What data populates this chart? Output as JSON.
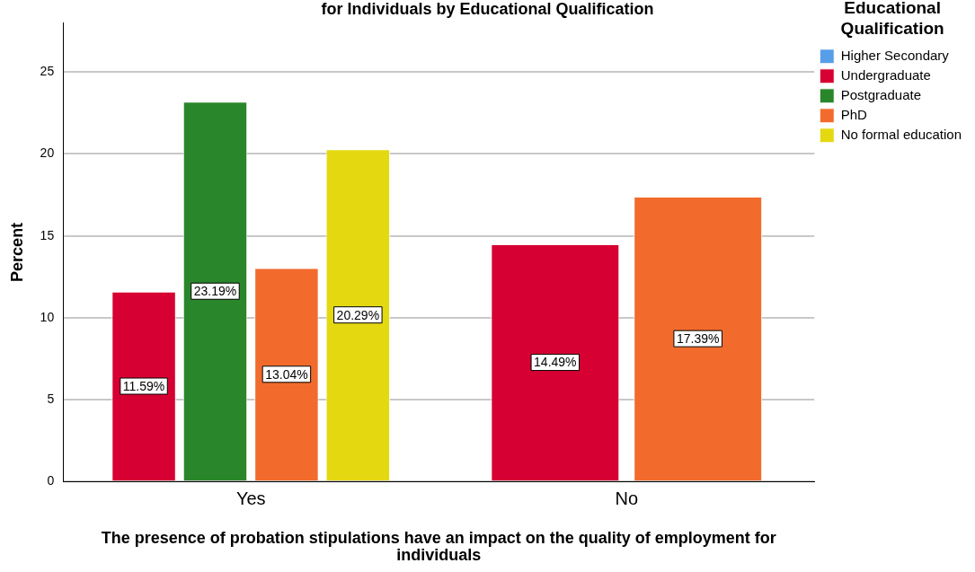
{
  "chart_data": {
    "type": "bar",
    "title": "for Individuals by Educational Qualification",
    "xlabel": "The presence of probation stipulations have an impact on the quality of employment for individuals",
    "ylabel": "Percent",
    "legend_title": "Educational Qualification",
    "categories": [
      "Yes",
      "No"
    ],
    "series": [
      {
        "name": "Higher Secondary",
        "color": "#579ee8",
        "values": [
          null,
          null
        ]
      },
      {
        "name": "Undergraduate",
        "color": "#d60032",
        "values": [
          11.59,
          14.49
        ],
        "value_labels": [
          "11.59%",
          "14.49%"
        ]
      },
      {
        "name": "Postgraduate",
        "color": "#2a862a",
        "values": [
          23.19,
          null
        ],
        "value_labels": [
          "23.19%",
          null
        ]
      },
      {
        "name": "PhD",
        "color": "#f26b2c",
        "values": [
          13.04,
          17.39
        ],
        "value_labels": [
          "13.04%",
          "17.39%"
        ]
      },
      {
        "name": "No formal education",
        "color": "#e4d811",
        "values": [
          20.29,
          null
        ],
        "value_labels": [
          "20.29%",
          null
        ]
      }
    ],
    "ylim": [
      0,
      28
    ],
    "yticks": [
      0,
      5,
      10,
      15,
      20,
      25
    ],
    "grid": "y",
    "legend": "top right"
  }
}
